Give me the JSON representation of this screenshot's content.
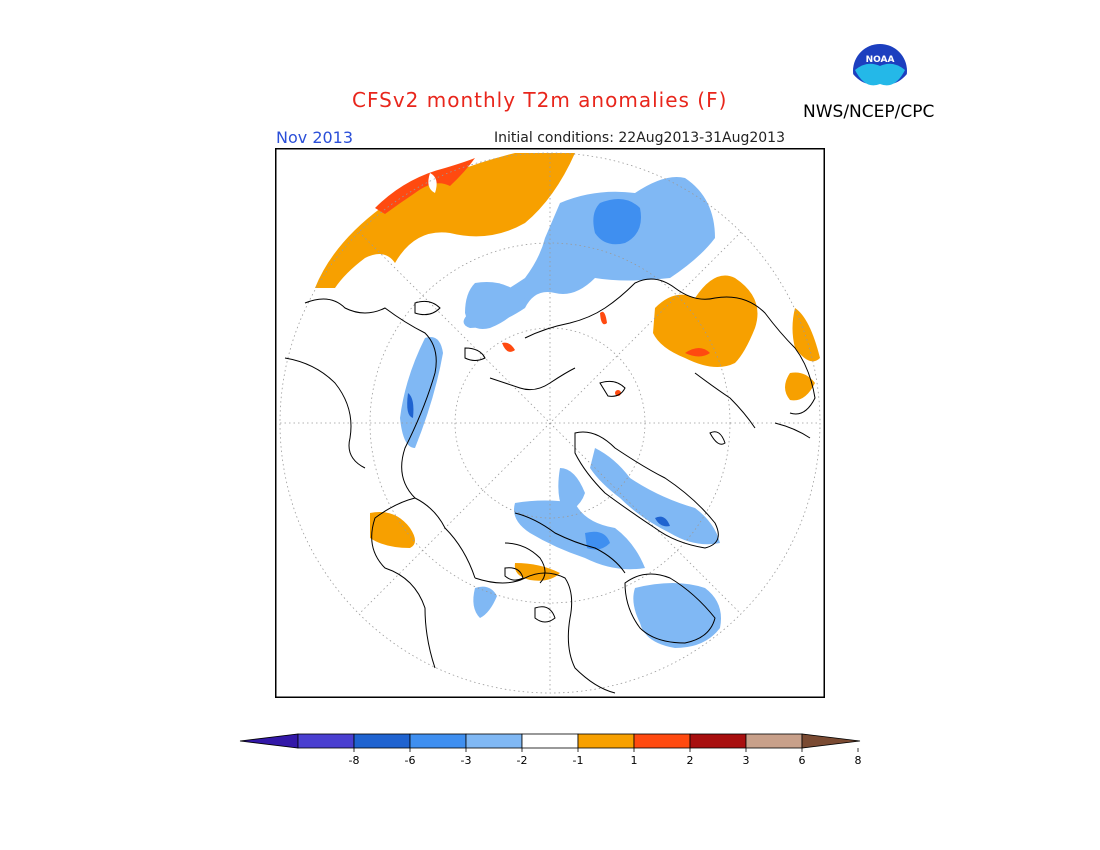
{
  "header": {
    "title": "CFSv2 monthly T2m anomalies (F)",
    "month": "Nov 2013",
    "initial_conditions": "Initial conditions: 22Aug2013-31Aug2013",
    "agency": "NWS/NCEP/CPC",
    "logo_text": "NOAA"
  },
  "colorbar": {
    "ticks": [
      "-8",
      "-6",
      "-3",
      "-2",
      "-1",
      "1",
      "2",
      "3",
      "6",
      "8"
    ],
    "colors": [
      "#3318a8",
      "#4a3fd0",
      "#1f63d0",
      "#3f8ff0",
      "#80b8f4",
      "#ffffff",
      "#f7a000",
      "#ff4a10",
      "#a80f0f",
      "#c8a08a",
      "#7a4a32"
    ]
  },
  "map": {
    "projection": "north-polar-stereographic",
    "colors": {
      "orange": "#f7a000",
      "red": "#ff4a10",
      "blue_light": "#80b8f4",
      "blue_mid": "#3f8ff0"
    }
  }
}
